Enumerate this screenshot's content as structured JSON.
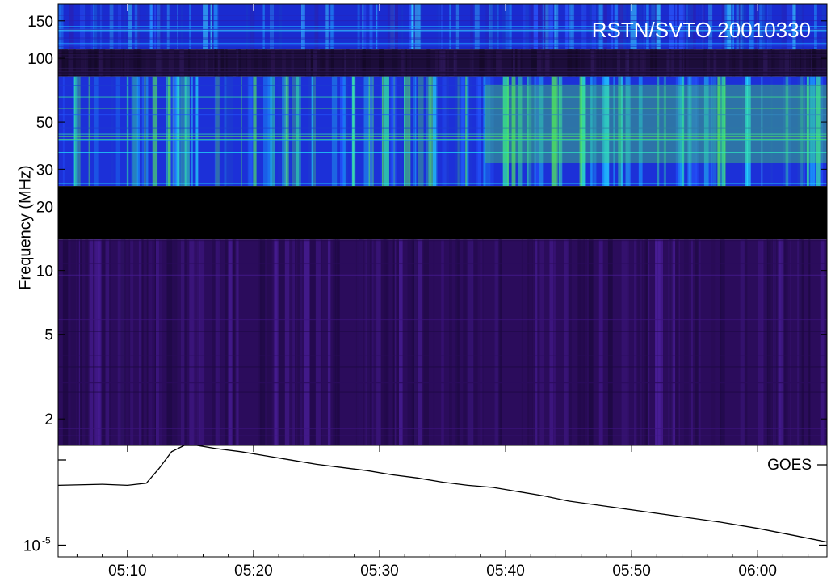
{
  "chart_data": [
    {
      "type": "heatmap",
      "title": "RSTN/SVTO 20010330",
      "ylabel": "Frequency (MHz)",
      "y_scale": "log",
      "ylim_mhz": [
        1.5,
        180
      ],
      "y_ticks": [
        {
          "value": 150,
          "label": "150"
        },
        {
          "value": 100,
          "label": "100"
        },
        {
          "value": 50,
          "label": "50"
        },
        {
          "value": 30,
          "label": "30"
        },
        {
          "value": 20,
          "label": "20"
        },
        {
          "value": 10,
          "label": "10"
        },
        {
          "value": 5,
          "label": "5"
        },
        {
          "value": 2,
          "label": "2"
        }
      ],
      "x_time_range": [
        "05:04:30",
        "06:05:30"
      ],
      "bands": [
        {
          "name": "upper",
          "range_mhz": [
            110,
            180
          ],
          "palette": "blue-cyan",
          "intensity": 0.45
        },
        {
          "name": "gap-noise",
          "range_mhz": [
            82,
            110
          ],
          "palette": "dark-purple-noise",
          "intensity": 0.1
        },
        {
          "name": "main",
          "range_mhz": [
            25,
            82
          ],
          "palette": "blue-green",
          "intensity": 0.6
        },
        {
          "name": "no-data",
          "range_mhz": [
            14,
            25
          ],
          "palette": "black",
          "intensity": 0
        },
        {
          "name": "low",
          "range_mhz": [
            1.5,
            14
          ],
          "palette": "purple",
          "intensity": 0.25
        }
      ]
    },
    {
      "type": "line",
      "series": [
        {
          "name": "GOES",
          "times": [
            "05:04:30",
            "05:08:00",
            "05:10:00",
            "05:11:30",
            "05:12:30",
            "05:13:30",
            "05:14:30",
            "05:15:30",
            "05:17:00",
            "05:19:00",
            "05:21:00",
            "05:23:00",
            "05:25:00",
            "05:27:00",
            "05:29:00",
            "05:31:00",
            "05:33:00",
            "05:35:00",
            "05:37:00",
            "05:39:00",
            "05:41:00",
            "05:43:00",
            "05:45:00",
            "05:48:00",
            "05:51:00",
            "05:54:00",
            "05:57:00",
            "06:00:00",
            "06:03:00",
            "06:05:30"
          ],
          "values": [
            0.62,
            0.63,
            0.62,
            0.64,
            0.78,
            0.94,
            1.0,
            1.0,
            0.97,
            0.94,
            0.9,
            0.86,
            0.82,
            0.79,
            0.76,
            0.72,
            0.69,
            0.65,
            0.62,
            0.6,
            0.56,
            0.52,
            0.47,
            0.42,
            0.37,
            0.32,
            0.27,
            0.21,
            0.14,
            0.08
          ]
        }
      ],
      "y_scale": "log",
      "ylim": [
        0.0,
        1.0
      ],
      "y_ticks": [
        {
          "value": 0.05,
          "label": "10",
          "exponent": "-5"
        }
      ],
      "xlim": [
        "05:04:30",
        "06:05:30"
      ],
      "x_ticks": [
        "05:10",
        "05:20",
        "05:30",
        "05:40",
        "05:50",
        "06:00"
      ],
      "legend": "top-right"
    }
  ]
}
